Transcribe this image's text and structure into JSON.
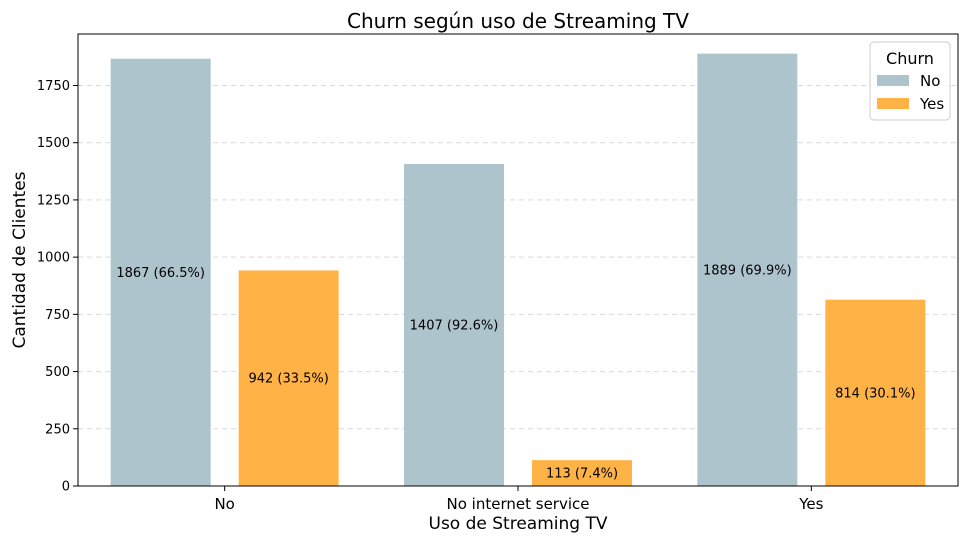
{
  "chart_data": {
    "type": "bar",
    "title": "Churn según uso de Streaming TV",
    "xlabel": "Uso de Streaming TV",
    "ylabel": "Cantidad de Clientes",
    "categories": [
      "No",
      "No internet service",
      "Yes"
    ],
    "series": [
      {
        "name": "No",
        "color": "#aec4cd",
        "values": [
          1867,
          1407,
          1889
        ],
        "labels": [
          "1867 (66.5%)",
          "1407 (92.6%)",
          "1889 (69.9%)"
        ]
      },
      {
        "name": "Yes",
        "color": "#ffb347",
        "values": [
          942,
          113,
          814
        ],
        "labels": [
          "942 (33.5%)",
          "113 (7.4%)",
          "814 (30.1%)"
        ]
      }
    ],
    "ylim": [
      0,
      1975
    ],
    "yticks": [
      0,
      250,
      500,
      750,
      1000,
      1250,
      1500,
      1750
    ],
    "grid": "y-dashed",
    "legend": {
      "title": "Churn",
      "position": "top-right"
    }
  }
}
